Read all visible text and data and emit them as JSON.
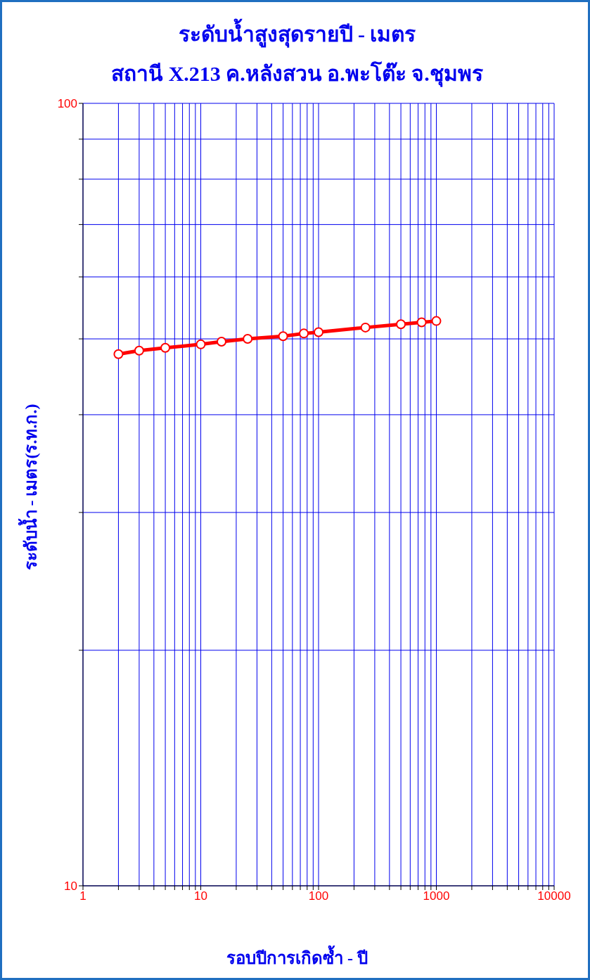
{
  "chart_data": {
    "type": "line",
    "title": "ระดับน้ำสูงสุดรายปี - เมตร",
    "subtitle": "สถานี X.213 ค.หลังสวน อ.พะโต๊ะ จ.ชุมพร",
    "xlabel": "รอบปีการเกิดซ้ำ - ปี",
    "ylabel": "ระดับน้ำ - เมตร(ร.ท.ก.)",
    "x": [
      2,
      3,
      5,
      10,
      15,
      25,
      50,
      75,
      100,
      250,
      500,
      750,
      1000
    ],
    "series": [
      {
        "color": "#ff0000",
        "values": [
          47.8,
          48.3,
          48.7,
          49.2,
          49.6,
          50.0,
          50.4,
          50.8,
          51.0,
          51.7,
          52.2,
          52.5,
          52.7
        ]
      }
    ],
    "log": "xy",
    "xlim": [
      1,
      10000
    ],
    "xticks": [
      1,
      {
        "value": 2,
        "label": null
      },
      {
        "value": 3,
        "label": null
      },
      {
        "value": 4,
        "label": null
      },
      {
        "value": 5,
        "label": null
      },
      {
        "value": 6,
        "label": null
      },
      {
        "value": 7,
        "label": null
      },
      {
        "value": 8,
        "label": null
      },
      {
        "value": 9,
        "label": null
      },
      10,
      {
        "value": 20,
        "label": null
      },
      {
        "value": 30,
        "label": null
      },
      {
        "value": 40,
        "label": null
      },
      {
        "value": 50,
        "label": null
      },
      {
        "value": 60,
        "label": null
      },
      {
        "value": 70,
        "label": null
      },
      {
        "value": 80,
        "label": null
      },
      {
        "value": 90,
        "label": null
      },
      100,
      {
        "value": 200,
        "label": null
      },
      {
        "value": 300,
        "label": null
      },
      {
        "value": 400,
        "label": null
      },
      {
        "value": 500,
        "label": null
      },
      {
        "value": 600,
        "label": null
      },
      {
        "value": 700,
        "label": null
      },
      {
        "value": 800,
        "label": null
      },
      {
        "value": 900,
        "label": null
      },
      1000,
      {
        "value": 2000,
        "label": null
      },
      {
        "value": 3000,
        "label": null
      },
      {
        "value": 4000,
        "label": null
      },
      {
        "value": 5000,
        "label": null
      },
      {
        "value": 6000,
        "label": null
      },
      {
        "value": 7000,
        "label": null
      },
      {
        "value": 8000,
        "label": null
      },
      {
        "value": 9000,
        "label": null
      },
      10000
    ],
    "ylim": [
      10,
      100
    ],
    "yticks": [
      10,
      {
        "value": 20,
        "label": null
      },
      {
        "value": 30,
        "label": null
      },
      {
        "value": 40,
        "label": null
      },
      {
        "value": 50,
        "label": null
      },
      {
        "value": 60,
        "label": null
      },
      {
        "value": 70,
        "label": null
      },
      {
        "value": 80,
        "label": null
      },
      {
        "value": 90,
        "label": null
      },
      100
    ],
    "grid": true,
    "legend": false,
    "marker": "circle",
    "line_style": "solid"
  }
}
